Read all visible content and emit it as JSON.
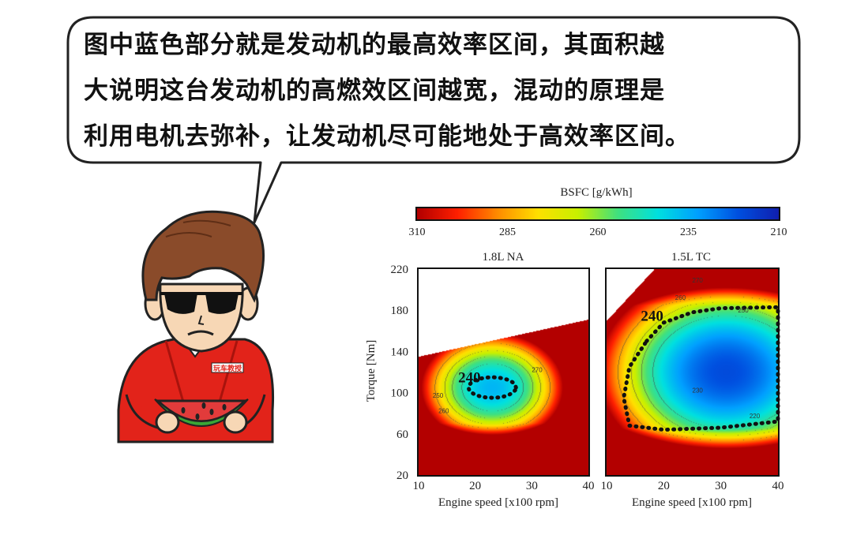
{
  "bubble": {
    "lines": [
      "图中蓝色部分就是发动机的最高效率区间，其面积越",
      "大说明这台发动机的高燃效区间越宽，混动的原理是",
      "利用电机去弥补，让发动机尽可能地处于高效率区间。"
    ]
  },
  "character": {
    "shirt_text": "玩车教授",
    "shirt_color": "#e2231a",
    "hair_color": "#8a4b2a"
  },
  "chart_data": {
    "type": "heatmap",
    "colorbar": {
      "title": "BSFC [g/kWh]",
      "ticks": [
        "310",
        "285",
        "260",
        "235",
        "210"
      ],
      "range": [
        310,
        210
      ],
      "colors": [
        "#b30000",
        "#ff2000",
        "#ff8c00",
        "#ffe000",
        "#c8f000",
        "#40e080",
        "#00e0e0",
        "#00a0ff",
        "#0050e0",
        "#1020b0"
      ]
    },
    "panels": [
      {
        "title": "1.8L NA",
        "xlabel": "Engine speed [x100 rpm]",
        "ylabel": "Torque [Nm]",
        "x_ticks": [
          "10",
          "20",
          "30",
          "40"
        ],
        "y_ticks": [
          "220",
          "180",
          "140",
          "100",
          "60",
          "20"
        ],
        "xlim": [
          10,
          40
        ],
        "ylim": [
          20,
          220
        ],
        "annotation": "240",
        "best_bsfc_center": {
          "speed": 23,
          "torque": 105
        },
        "contour_labels": [
          "250",
          "260",
          "270"
        ]
      },
      {
        "title": "1.5L TC",
        "xlabel": "Engine speed [x100 rpm]",
        "ylabel": "",
        "x_ticks": [
          "10",
          "20",
          "30",
          "40"
        ],
        "y_ticks": [],
        "xlim": [
          10,
          40
        ],
        "ylim": [
          20,
          220
        ],
        "annotation": "240",
        "best_bsfc_center": {
          "speed": 31,
          "torque": 120
        },
        "contour_labels": [
          "270",
          "260",
          "250",
          "230",
          "220"
        ]
      }
    ]
  }
}
